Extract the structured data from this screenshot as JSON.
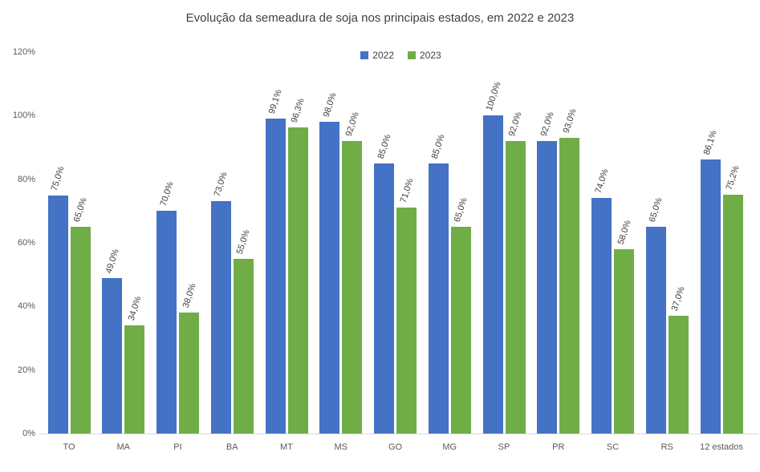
{
  "title": "Evolução da semeadura de soja nos principais estados, em 2022 e 2023",
  "colors": {
    "series_2022": "#4472C4",
    "series_2023": "#70AD47",
    "axis_line": "#d9d9d9",
    "tick_text": "#595959",
    "label_text": "#404040",
    "title_text": "#404040",
    "background": "#ffffff"
  },
  "legend": {
    "items": [
      {
        "label": "2022",
        "color": "#4472C4"
      },
      {
        "label": "2023",
        "color": "#70AD47"
      }
    ]
  },
  "chart_data": {
    "type": "bar",
    "title": "Evolução da semeadura de soja nos principais estados, em 2022 e 2023",
    "xlabel": "",
    "ylabel": "",
    "ylim": [
      0,
      120
    ],
    "grid": false,
    "legend_position": "top-center",
    "data_labels_rotated": true,
    "categories": [
      "TO",
      "MA",
      "PI",
      "BA",
      "MT",
      "MS",
      "GO",
      "MG",
      "SP",
      "PR",
      "SC",
      "RS",
      "12 estados"
    ],
    "yticks": {
      "values": [
        0,
        20,
        40,
        60,
        80,
        100,
        120
      ],
      "labels": [
        "0%",
        "20%",
        "40%",
        "60%",
        "80%",
        "100%",
        "120%"
      ]
    },
    "series": [
      {
        "name": "2022",
        "color": "#4472C4",
        "values": [
          75.0,
          49.0,
          70.0,
          73.0,
          99.1,
          98.0,
          85.0,
          85.0,
          100.0,
          92.0,
          74.0,
          65.0,
          86.1
        ],
        "labels": [
          "75,0%",
          "49,0%",
          "70,0%",
          "73,0%",
          "99,1%",
          "98,0%",
          "85,0%",
          "85,0%",
          "100,0%",
          "92,0%",
          "74,0%",
          "65,0%",
          "86,1%"
        ]
      },
      {
        "name": "2023",
        "color": "#70AD47",
        "values": [
          65.0,
          34.0,
          38.0,
          55.0,
          96.3,
          92.0,
          71.0,
          65.0,
          92.0,
          93.0,
          58.0,
          37.0,
          75.2
        ],
        "labels": [
          "65,0%",
          "34,0%",
          "38,0%",
          "55,0%",
          "96,3%",
          "92,0%",
          "71,0%",
          "65,0%",
          "92,0%",
          "93,0%",
          "58,0%",
          "37,0%",
          "75,2%"
        ]
      }
    ]
  }
}
